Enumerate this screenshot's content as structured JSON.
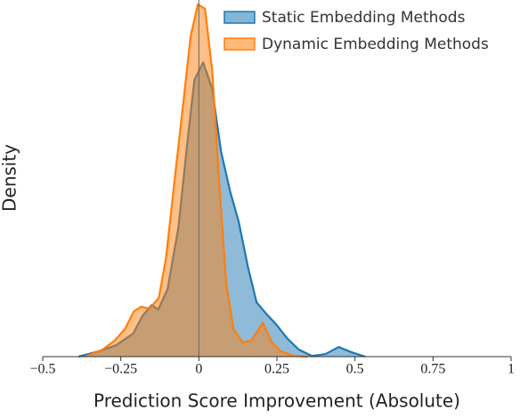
{
  "chart_data": {
    "type": "density",
    "xlabel": "Prediction Score Improvement (Absolute)",
    "ylabel": "Density",
    "xlim": [
      -0.5,
      1
    ],
    "xticks": [
      {
        "value": -0.5,
        "label": "−0.5"
      },
      {
        "value": -0.25,
        "label": "−0.25"
      },
      0,
      0.25,
      0.5,
      0.75,
      1
    ],
    "ylim": [
      0,
      10
    ],
    "vline": 0,
    "legend": "upper right",
    "series": [
      {
        "name": "Static Embedding Methods",
        "color": "#1f77b4",
        "x": [
          -0.385,
          -0.32,
          -0.265,
          -0.21,
          -0.18,
          -0.15,
          -0.13,
          -0.1,
          -0.065,
          -0.037,
          -0.014,
          0.014,
          0.043,
          0.071,
          0.1,
          0.128,
          0.157,
          0.185,
          0.214,
          0.248,
          0.282,
          0.32,
          0.362,
          0.405,
          0.448,
          0.49,
          0.533
        ],
        "values": [
          0,
          0.15,
          0.32,
          0.65,
          1.15,
          1.45,
          1.32,
          1.9,
          3.64,
          6.0,
          7.76,
          8.25,
          7.5,
          5.76,
          4.64,
          3.77,
          2.52,
          1.52,
          1.22,
          0.9,
          0.52,
          0.2,
          0.02,
          0.07,
          0.27,
          0.12,
          0
        ]
      },
      {
        "name": "Dynamic Embedding Methods",
        "color": "#ff7f0e",
        "x": [
          -0.365,
          -0.308,
          -0.27,
          -0.237,
          -0.208,
          -0.185,
          -0.157,
          -0.128,
          -0.105,
          -0.077,
          -0.048,
          -0.026,
          -0.003,
          0.02,
          0.043,
          0.066,
          0.088,
          0.111,
          0.14,
          0.168,
          0.205,
          0.234,
          0.262,
          0.305,
          0.348
        ],
        "values": [
          0,
          0.2,
          0.45,
          0.77,
          1.27,
          1.4,
          1.35,
          1.65,
          2.77,
          5.0,
          7.26,
          9.0,
          9.88,
          9.75,
          8.0,
          4.76,
          2.02,
          0.77,
          0.4,
          0.45,
          0.95,
          0.4,
          0.15,
          0.02,
          0
        ]
      }
    ]
  }
}
